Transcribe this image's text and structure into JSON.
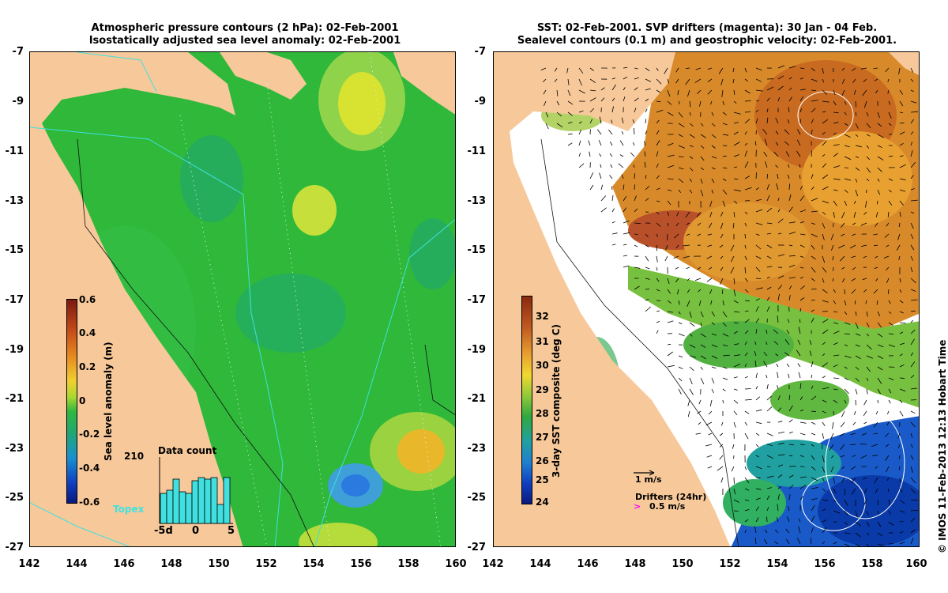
{
  "left_panel": {
    "title_line1": "Atmospheric pressure contours (2 hPa): 02-Feb-2001",
    "title_line2": "Isostatically adjusted sea level anomaly: 02-Feb-2001",
    "colorbar_label": "Sea level anomaly (m)",
    "colorbar_ticks": [
      "0.6",
      "0.4",
      "0.2",
      "0",
      "-0.2",
      "-0.4",
      "-0.6"
    ],
    "satellite_label": "Topex",
    "data_count": {
      "title": "Data count",
      "ymax_label": "210",
      "x_labels": [
        "-5d",
        "0",
        "5"
      ],
      "bars": [
        95,
        105,
        140,
        100,
        95,
        135,
        145,
        140,
        145,
        60,
        145
      ]
    }
  },
  "right_panel": {
    "title_line1": "SST: 02-Feb-2001. SVP drifters (magenta): 30 Jan - 04 Feb.",
    "title_line2": "Sealevel contours (0.1 m) and geostrophic velocity: 02-Feb-2001.",
    "colorbar_label": "3-day SST composite (deg C)",
    "colorbar_ticks": [
      "32",
      "31",
      "30",
      "29",
      "28",
      "27",
      "26",
      "25",
      "24"
    ],
    "velocity_scale_label": "1 m/s",
    "drifters_label": "Drifters (24hr)",
    "drifter_scale_label": "0.5 m/s",
    "drifter_color": "#ff00ff"
  },
  "axes": {
    "y_ticks": [
      "-7",
      "-9",
      "-11",
      "-13",
      "-15",
      "-17",
      "-19",
      "-21",
      "-23",
      "-25",
      "-27"
    ],
    "x_ticks": [
      "142",
      "144",
      "146",
      "148",
      "150",
      "152",
      "154",
      "156",
      "158",
      "160"
    ]
  },
  "colors": {
    "land": "#f7c99a",
    "ocean_sla": "#2fb83a",
    "white_cloud": "#ffffff"
  },
  "copyright": "© IMOS 11-Feb-2013 12:13 Hobart Time"
}
